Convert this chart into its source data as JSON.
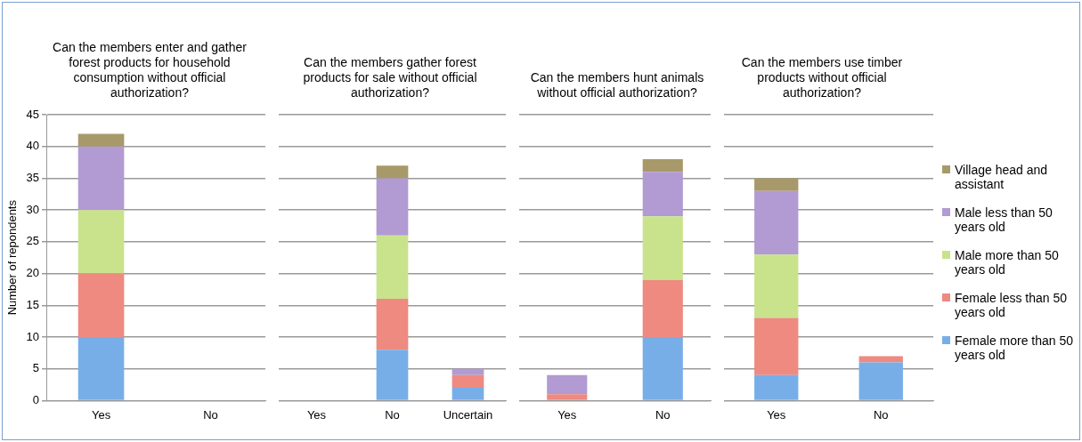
{
  "chart_data": [
    {
      "type": "bar",
      "stacked": true,
      "title": "Can the members enter and gather forest products for household consumption without official authorization?",
      "ylabel": "Number of repondents",
      "categories": [
        "Yes",
        "No"
      ],
      "ylim": [
        0,
        45
      ],
      "yticks": [
        0,
        5,
        10,
        15,
        20,
        25,
        30,
        35,
        40,
        45
      ],
      "grid": "y",
      "legend": false,
      "series": [
        {
          "color": "#78aee8",
          "values": [
            10,
            0
          ]
        },
        {
          "color": "#ee8a80",
          "values": [
            10,
            0
          ]
        },
        {
          "color": "#c8e38c",
          "values": [
            10,
            0
          ]
        },
        {
          "color": "#b29ad3",
          "values": [
            10,
            0
          ]
        },
        {
          "color": "#a8996a",
          "values": [
            2,
            0
          ]
        }
      ]
    },
    {
      "type": "bar",
      "stacked": true,
      "title": "Can the members gather forest products for sale without official authorization?",
      "categories": [
        "Yes",
        "No",
        "Uncertain"
      ],
      "ylim": [
        0,
        45
      ],
      "yticks": [
        0,
        5,
        10,
        15,
        20,
        25,
        30,
        35,
        40,
        45
      ],
      "grid": "y",
      "legend": false,
      "tick_labels": "x",
      "series": [
        {
          "color": "#78aee8",
          "values": [
            0,
            8,
            2
          ]
        },
        {
          "color": "#ee8a80",
          "values": [
            0,
            8,
            2
          ]
        },
        {
          "color": "#c8e38c",
          "values": [
            0,
            10,
            0
          ]
        },
        {
          "color": "#b29ad3",
          "values": [
            0,
            9,
            1
          ]
        },
        {
          "color": "#a8996a",
          "values": [
            0,
            2,
            0
          ]
        }
      ]
    },
    {
      "type": "bar",
      "stacked": true,
      "title": "Can the members hunt animals without official authorization?",
      "categories": [
        "Yes",
        "No"
      ],
      "ylim": [
        0,
        45
      ],
      "yticks": [
        0,
        5,
        10,
        15,
        20,
        25,
        30,
        35,
        40,
        45
      ],
      "grid": "y",
      "legend": false,
      "tick_labels": "x",
      "series": [
        {
          "color": "#78aee8",
          "values": [
            0,
            10
          ]
        },
        {
          "color": "#ee8a80",
          "values": [
            1,
            9
          ]
        },
        {
          "color": "#c8e38c",
          "values": [
            0,
            10
          ]
        },
        {
          "color": "#b29ad3",
          "values": [
            3,
            7
          ]
        },
        {
          "color": "#a8996a",
          "values": [
            0,
            2
          ]
        }
      ]
    },
    {
      "type": "bar",
      "stacked": true,
      "title": "Can the members use timber products without official authorization?",
      "categories": [
        "Yes",
        "No"
      ],
      "ylim": [
        0,
        45
      ],
      "yticks": [
        0,
        5,
        10,
        15,
        20,
        25,
        30,
        35,
        40,
        45
      ],
      "grid": "y",
      "legend": "right",
      "tick_labels": "x",
      "series": [
        {
          "name": "Female more than 50 years old",
          "color": "#78aee8",
          "values": [
            4,
            6
          ]
        },
        {
          "name": "Female less than 50 years old",
          "color": "#ee8a80",
          "values": [
            9,
            1
          ]
        },
        {
          "name": "Male more than 50 years old",
          "color": "#c8e38c",
          "values": [
            10,
            0
          ]
        },
        {
          "name": "Male less than 50 years old",
          "color": "#b29ad3",
          "values": [
            10,
            0
          ]
        },
        {
          "name": "Village head and assistant",
          "color": "#a8996a",
          "values": [
            2,
            0
          ]
        }
      ]
    }
  ]
}
